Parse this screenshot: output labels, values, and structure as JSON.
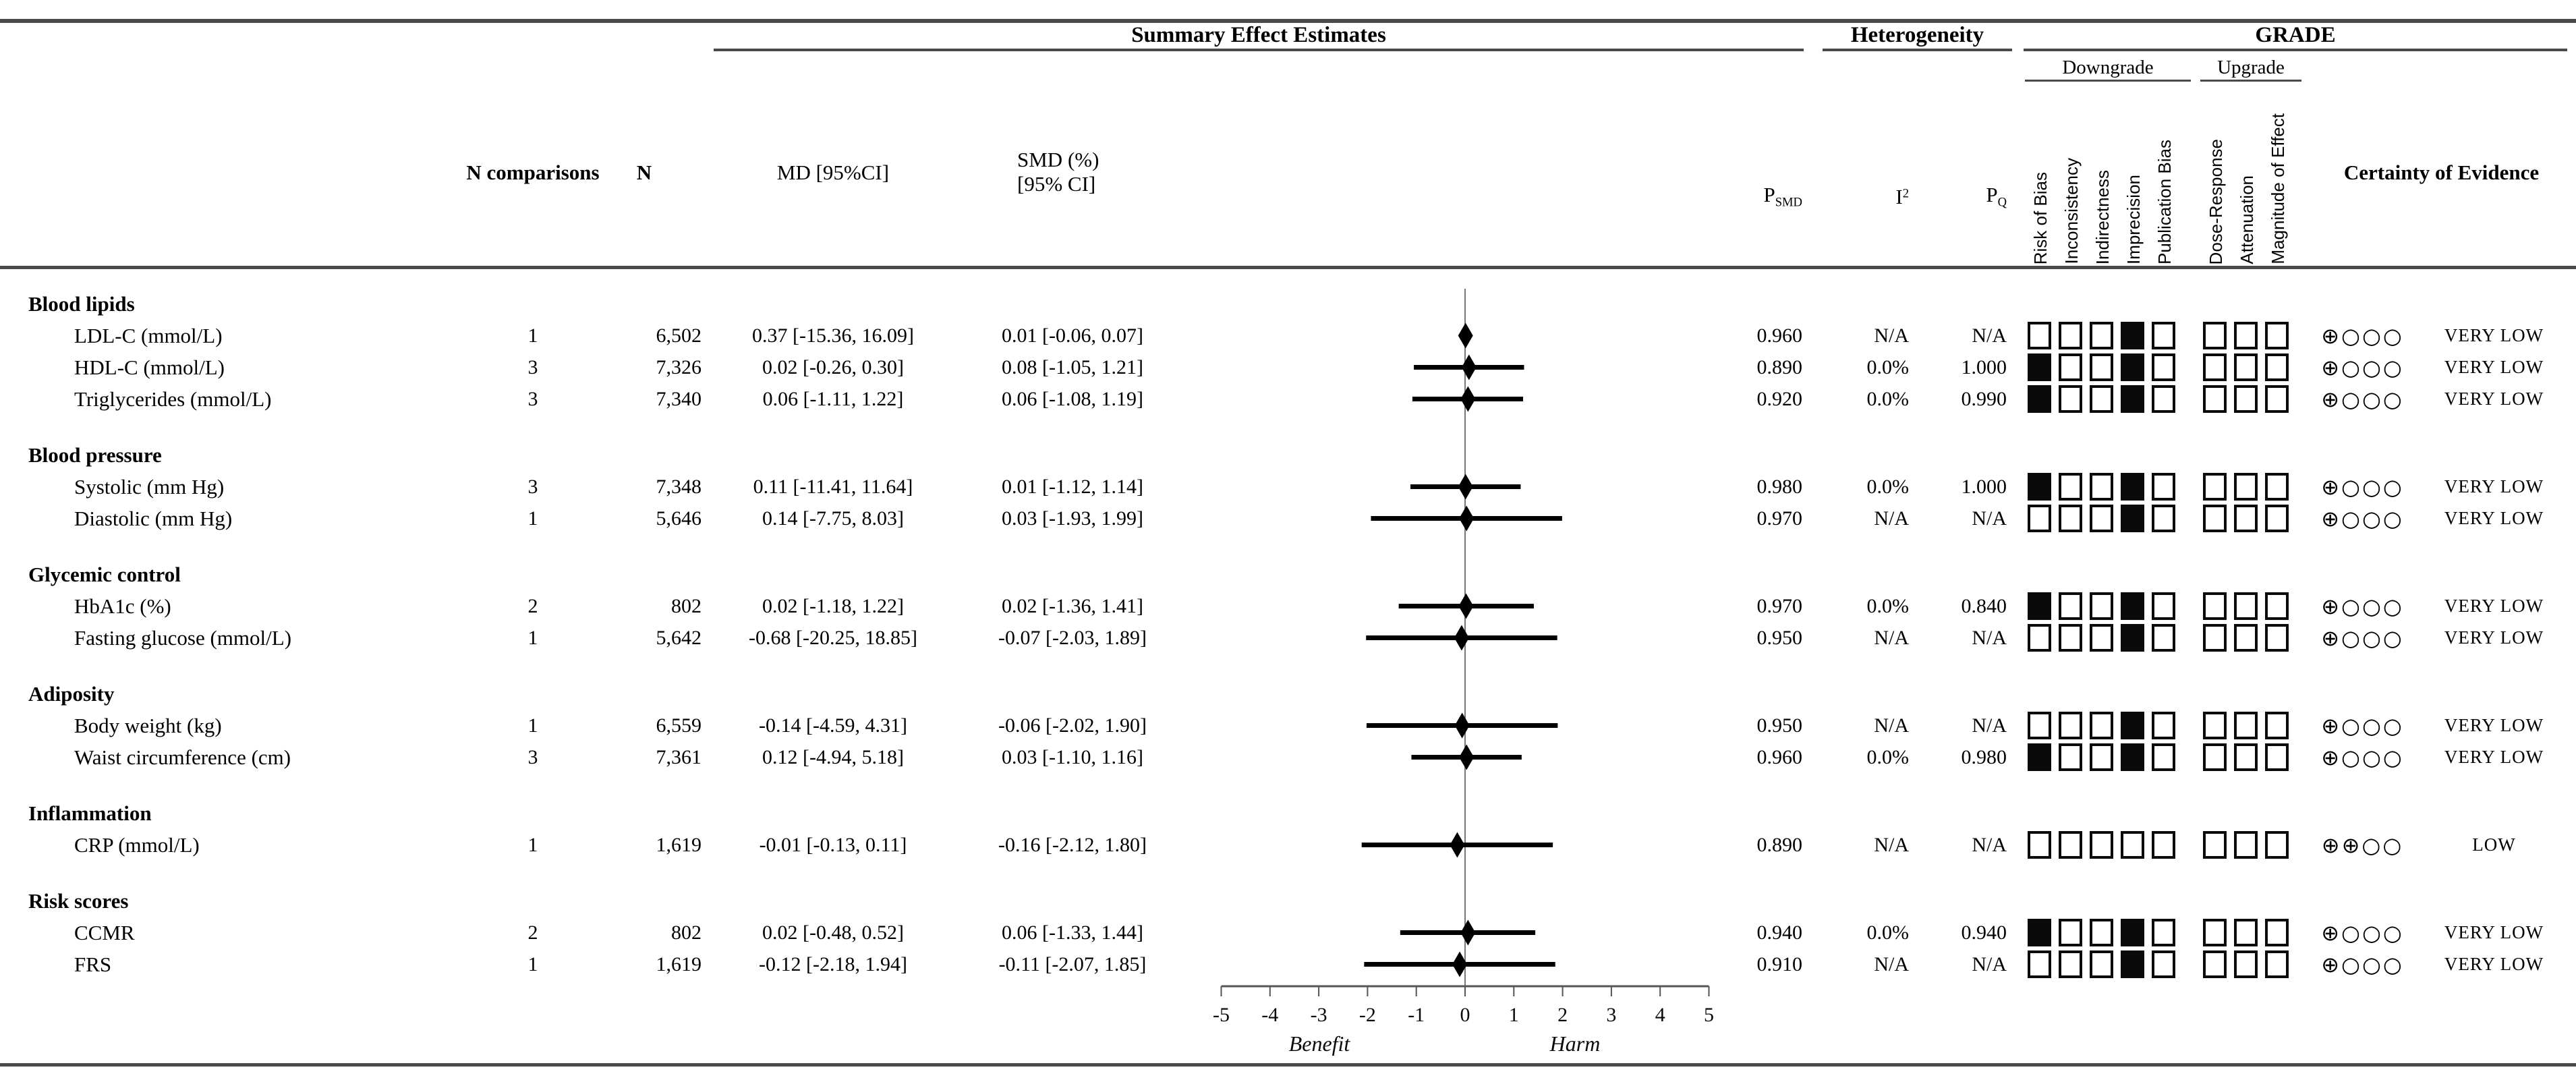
{
  "header": {
    "summary": "Summary Effect Estimates",
    "heterogeneity": "Heterogeneity",
    "grade": "GRADE",
    "downgrade": "Downgrade",
    "upgrade": "Upgrade",
    "columns": {
      "n_comparisons": "N comparisons",
      "n": "N",
      "md": "MD [95%CI]",
      "smd_line1": "SMD (%)",
      "smd_line2": "[95% CI]",
      "p_smd_base": "P",
      "p_smd_sub": "SMD",
      "i2_base": "I",
      "i2_sup": "2",
      "p_q_base": "P",
      "p_q_sub": "Q",
      "certainty": "Certainty of Evidence"
    },
    "grade_criteria": {
      "downgrade": [
        "Risk of Bias",
        "Inconsistency",
        "Indirectness",
        "Imprecision",
        "Publication Bias"
      ],
      "upgrade": [
        "Dose-Response",
        "Attenuation",
        "Magnitude of Effect"
      ]
    }
  },
  "colors": {
    "rule": "#4a4a4a",
    "marker": "#000000",
    "zero_line": "#777777",
    "axis": "#555555"
  },
  "chart_data": {
    "type": "forest",
    "x_axis": {
      "min": -5,
      "max": 5,
      "ticks": [
        -5,
        -4,
        -3,
        -2,
        -1,
        0,
        1,
        2,
        3,
        4,
        5
      ]
    },
    "xlabel_left": "Benefit",
    "xlabel_right": "Harm",
    "zero_reference": 0,
    "groups": [
      {
        "name": "Blood lipids",
        "rows": [
          {
            "label": "LDL-C (mmol/L)",
            "n_comparisons": "1",
            "n": "6,502",
            "md": "0.37 [-15.36, 16.09]",
            "smd": "0.01 [-0.06, 0.07]",
            "smd_est": 0.01,
            "smd_lo": -0.06,
            "smd_hi": 0.07,
            "p_smd": "0.960",
            "i2": "N/A",
            "p_q": "N/A",
            "downgrade": [
              0,
              0,
              0,
              1,
              0
            ],
            "upgrade": [
              0,
              0,
              0
            ],
            "certainty_symbols": "⊕○○○",
            "certainty": "VERY LOW"
          },
          {
            "label": "HDL-C (mmol/L)",
            "n_comparisons": "3",
            "n": "7,326",
            "md": "0.02 [-0.26, 0.30]",
            "smd": "0.08 [-1.05, 1.21]",
            "smd_est": 0.08,
            "smd_lo": -1.05,
            "smd_hi": 1.21,
            "p_smd": "0.890",
            "i2": "0.0%",
            "p_q": "1.000",
            "downgrade": [
              1,
              0,
              0,
              1,
              0
            ],
            "upgrade": [
              0,
              0,
              0
            ],
            "certainty_symbols": "⊕○○○",
            "certainty": "VERY LOW"
          },
          {
            "label": "Triglycerides (mmol/L)",
            "n_comparisons": "3",
            "n": "7,340",
            "md": "0.06 [-1.11, 1.22]",
            "smd": "0.06 [-1.08, 1.19]",
            "smd_est": 0.06,
            "smd_lo": -1.08,
            "smd_hi": 1.19,
            "p_smd": "0.920",
            "i2": "0.0%",
            "p_q": "0.990",
            "downgrade": [
              1,
              0,
              0,
              1,
              0
            ],
            "upgrade": [
              0,
              0,
              0
            ],
            "certainty_symbols": "⊕○○○",
            "certainty": "VERY LOW"
          }
        ]
      },
      {
        "name": "Blood pressure",
        "rows": [
          {
            "label": "Systolic (mm Hg)",
            "n_comparisons": "3",
            "n": "7,348",
            "md": "0.11 [-11.41, 11.64]",
            "smd": "0.01 [-1.12, 1.14]",
            "smd_est": 0.01,
            "smd_lo": -1.12,
            "smd_hi": 1.14,
            "p_smd": "0.980",
            "i2": "0.0%",
            "p_q": "1.000",
            "downgrade": [
              1,
              0,
              0,
              1,
              0
            ],
            "upgrade": [
              0,
              0,
              0
            ],
            "certainty_symbols": "⊕○○○",
            "certainty": "VERY LOW"
          },
          {
            "label": "Diastolic (mm Hg)",
            "n_comparisons": "1",
            "n": "5,646",
            "md": "0.14 [-7.75, 8.03]",
            "smd": "0.03 [-1.93, 1.99]",
            "smd_est": 0.03,
            "smd_lo": -1.93,
            "smd_hi": 1.99,
            "p_smd": "0.970",
            "i2": "N/A",
            "p_q": "N/A",
            "downgrade": [
              0,
              0,
              0,
              1,
              0
            ],
            "upgrade": [
              0,
              0,
              0
            ],
            "certainty_symbols": "⊕○○○",
            "certainty": "VERY LOW"
          }
        ]
      },
      {
        "name": "Glycemic control",
        "rows": [
          {
            "label": "HbA1c (%)",
            "n_comparisons": "2",
            "n": "802",
            "md": "0.02 [-1.18, 1.22]",
            "smd": "0.02 [-1.36, 1.41]",
            "smd_est": 0.02,
            "smd_lo": -1.36,
            "smd_hi": 1.41,
            "p_smd": "0.970",
            "i2": "0.0%",
            "p_q": "0.840",
            "downgrade": [
              1,
              0,
              0,
              1,
              0
            ],
            "upgrade": [
              0,
              0,
              0
            ],
            "certainty_symbols": "⊕○○○",
            "certainty": "VERY LOW"
          },
          {
            "label": "Fasting glucose (mmol/L)",
            "n_comparisons": "1",
            "n": "5,642",
            "md": "-0.68 [-20.25, 18.85]",
            "smd": "-0.07 [-2.03, 1.89]",
            "smd_est": -0.07,
            "smd_lo": -2.03,
            "smd_hi": 1.89,
            "p_smd": "0.950",
            "i2": "N/A",
            "p_q": "N/A",
            "downgrade": [
              0,
              0,
              0,
              1,
              0
            ],
            "upgrade": [
              0,
              0,
              0
            ],
            "certainty_symbols": "⊕○○○",
            "certainty": "VERY LOW"
          }
        ]
      },
      {
        "name": "Adiposity",
        "rows": [
          {
            "label": "Body weight (kg)",
            "n_comparisons": "1",
            "n": "6,559",
            "md": "-0.14 [-4.59, 4.31]",
            "smd": "-0.06 [-2.02, 1.90]",
            "smd_est": -0.06,
            "smd_lo": -2.02,
            "smd_hi": 1.9,
            "p_smd": "0.950",
            "i2": "N/A",
            "p_q": "N/A",
            "downgrade": [
              0,
              0,
              0,
              1,
              0
            ],
            "upgrade": [
              0,
              0,
              0
            ],
            "certainty_symbols": "⊕○○○",
            "certainty": "VERY LOW"
          },
          {
            "label": "Waist circumference (cm)",
            "n_comparisons": "3",
            "n": "7,361",
            "md": "0.12 [-4.94, 5.18]",
            "smd": "0.03 [-1.10, 1.16]",
            "smd_est": 0.03,
            "smd_lo": -1.1,
            "smd_hi": 1.16,
            "p_smd": "0.960",
            "i2": "0.0%",
            "p_q": "0.980",
            "downgrade": [
              1,
              0,
              0,
              1,
              0
            ],
            "upgrade": [
              0,
              0,
              0
            ],
            "certainty_symbols": "⊕○○○",
            "certainty": "VERY LOW"
          }
        ]
      },
      {
        "name": "Inflammation",
        "rows": [
          {
            "label": "CRP (mmol/L)",
            "n_comparisons": "1",
            "n": "1,619",
            "md": "-0.01 [-0.13, 0.11]",
            "smd": "-0.16 [-2.12, 1.80]",
            "smd_est": -0.16,
            "smd_lo": -2.12,
            "smd_hi": 1.8,
            "p_smd": "0.890",
            "i2": "N/A",
            "p_q": "N/A",
            "downgrade": [
              0,
              0,
              0,
              0,
              0
            ],
            "upgrade": [
              0,
              0,
              0
            ],
            "certainty_symbols": "⊕⊕○○",
            "certainty": "LOW"
          }
        ]
      },
      {
        "name": "Risk scores",
        "rows": [
          {
            "label": "CCMR",
            "n_comparisons": "2",
            "n": "802",
            "md": "0.02 [-0.48, 0.52]",
            "smd": "0.06 [-1.33, 1.44]",
            "smd_est": 0.06,
            "smd_lo": -1.33,
            "smd_hi": 1.44,
            "p_smd": "0.940",
            "i2": "0.0%",
            "p_q": "0.940",
            "downgrade": [
              1,
              0,
              0,
              1,
              0
            ],
            "upgrade": [
              0,
              0,
              0
            ],
            "certainty_symbols": "⊕○○○",
            "certainty": "VERY LOW"
          },
          {
            "label": "FRS",
            "n_comparisons": "1",
            "n": "1,619",
            "md": "-0.12 [-2.18, 1.94]",
            "smd": "-0.11 [-2.07, 1.85]",
            "smd_est": -0.11,
            "smd_lo": -2.07,
            "smd_hi": 1.85,
            "p_smd": "0.910",
            "i2": "N/A",
            "p_q": "N/A",
            "downgrade": [
              0,
              0,
              0,
              1,
              0
            ],
            "upgrade": [
              0,
              0,
              0
            ],
            "certainty_symbols": "⊕○○○",
            "certainty": "VERY LOW"
          }
        ]
      }
    ]
  }
}
